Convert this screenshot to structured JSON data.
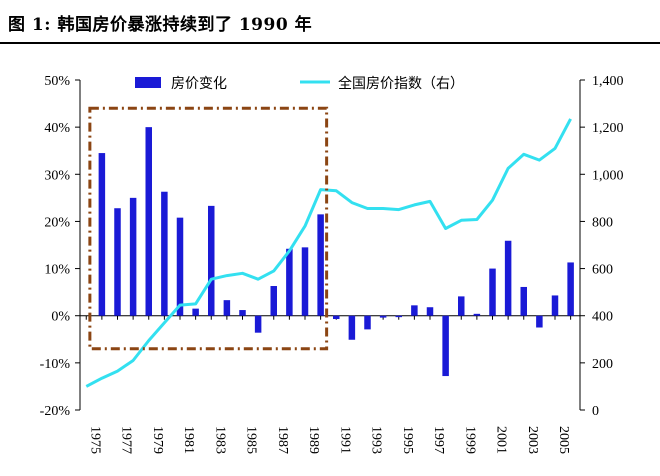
{
  "header": {
    "title": "图 1:  韩国房价暴涨持续到了 1990 年"
  },
  "chart_data": {
    "type": "bar+line",
    "x": [
      1975,
      1976,
      1977,
      1978,
      1979,
      1980,
      1981,
      1982,
      1983,
      1984,
      1985,
      1986,
      1987,
      1988,
      1989,
      1990,
      1991,
      1992,
      1993,
      1994,
      1995,
      1996,
      1997,
      1998,
      1999,
      2000,
      2001,
      2002,
      2003,
      2004,
      2005,
      2006
    ],
    "x_tick_labels": [
      "1975",
      "1977",
      "1979",
      "1981",
      "1983",
      "1985",
      "1987",
      "1989",
      "1991",
      "1993",
      "1995",
      "1997",
      "1999",
      "2001",
      "2003",
      "2005"
    ],
    "series": [
      {
        "name": "房价变化",
        "type": "bar",
        "axis": "left",
        "color": "#1a1ad6",
        "x": [
          1976,
          1977,
          1978,
          1979,
          1980,
          1981,
          1982,
          1983,
          1984,
          1985,
          1986,
          1987,
          1988,
          1989,
          1990,
          1991,
          1992,
          1993,
          1994,
          1995,
          1996,
          1997,
          1998,
          1999,
          2000,
          2001,
          2002,
          2003,
          2004,
          2005,
          2006
        ],
        "values": [
          34.5,
          22.8,
          25.0,
          40.0,
          26.3,
          20.8,
          1.5,
          23.3,
          3.3,
          1.2,
          -3.6,
          6.3,
          14.2,
          14.5,
          21.5,
          -0.7,
          -5.1,
          -2.9,
          -0.4,
          -0.3,
          2.2,
          1.8,
          -12.8,
          4.1,
          0.4,
          10.0,
          15.9,
          6.1,
          -2.5,
          4.3,
          11.3
        ]
      },
      {
        "name": "全国房价指数（右）",
        "type": "line",
        "axis": "right",
        "color": "#33e0f0",
        "x": [
          1975,
          1976,
          1977,
          1978,
          1979,
          1980,
          1981,
          1982,
          1983,
          1984,
          1985,
          1986,
          1987,
          1988,
          1989,
          1990,
          1991,
          1992,
          1993,
          1994,
          1995,
          1996,
          1997,
          1998,
          1999,
          2000,
          2001,
          2002,
          2003,
          2004,
          2005,
          2006
        ],
        "values": [
          100,
          135,
          165,
          210,
          295,
          370,
          445,
          450,
          555,
          570,
          580,
          555,
          590,
          675,
          780,
          935,
          930,
          880,
          855,
          855,
          850,
          870,
          885,
          770,
          805,
          808,
          890,
          1025,
          1085,
          1060,
          1110,
          1235
        ]
      }
    ],
    "y_left": {
      "ylim": [
        -20,
        50
      ],
      "ticks": [
        "-20%",
        "-10%",
        "0%",
        "10%",
        "20%",
        "30%",
        "40%",
        "50%"
      ]
    },
    "y_right": {
      "ylim": [
        0,
        1400
      ],
      "ticks": [
        "0",
        "200",
        "400",
        "600",
        "800",
        "1,000",
        "1,200",
        "1,400"
      ]
    },
    "annotation": {
      "type": "dash-dot box",
      "x_range": [
        1976,
        1990
      ],
      "y_range": [
        -7,
        44
      ],
      "color": "#8b4513"
    },
    "legend": "top"
  }
}
